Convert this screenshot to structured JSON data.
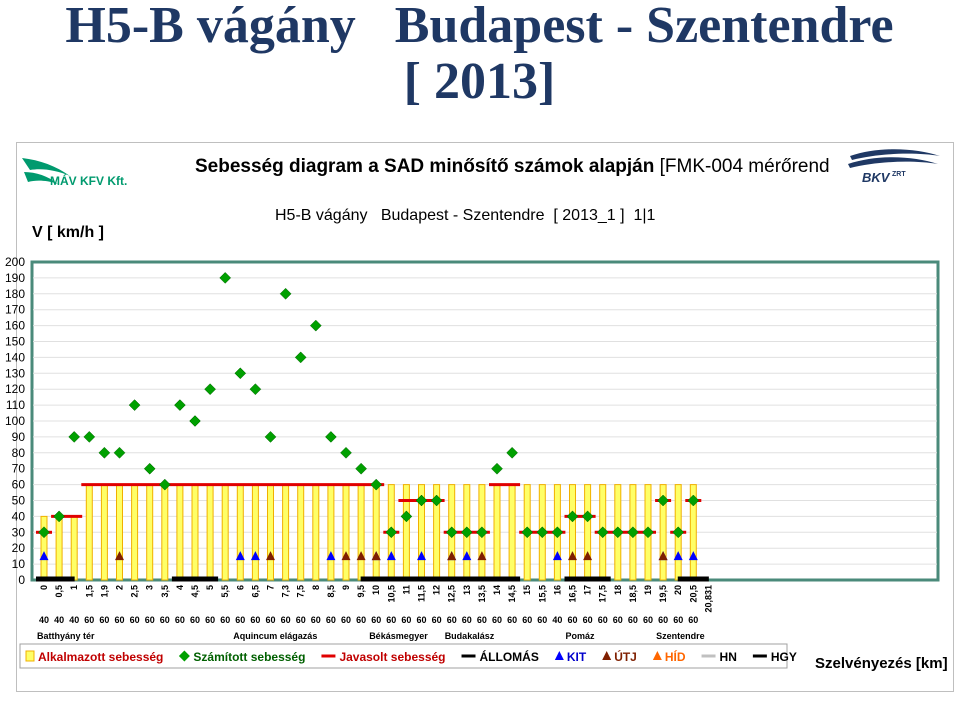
{
  "page": {
    "title_line1": "H5-B vágány   Budapest - Szentendre",
    "title_line2": "[ 2013]",
    "logo_left_text": "MÁV KFV Kft.",
    "logo_right_text": "BKV",
    "logo_right_badge": "ZRT"
  },
  "chart_data": {
    "type": "bar",
    "header": "Sebesség diagram a SAD minősítő számok alapján",
    "header_suffix": " [FMK-004 mérőrend",
    "title": "H5-B vágány   Budapest - Szentendre  [ 2013_1 ]  1|1",
    "ylabel": "V [ km/h ]",
    "xlabel": "Szelvényezés [km]",
    "ylim": [
      0,
      200
    ],
    "yticks": [
      0,
      10,
      20,
      30,
      40,
      50,
      60,
      70,
      80,
      90,
      100,
      110,
      120,
      130,
      140,
      150,
      160,
      170,
      180,
      190,
      200
    ],
    "grid": "y-major",
    "x_ticks": [
      "0",
      "0,5",
      "1",
      "1,5",
      "1,9",
      "2",
      "2,5",
      "3",
      "3,5",
      "4",
      "4,5",
      "5",
      "5,5",
      "6",
      "6,5",
      "7",
      "7,3",
      "7,5",
      "8",
      "8,5",
      "9",
      "9,5",
      "10",
      "10,5",
      "11",
      "11,5",
      "12",
      "12,5",
      "13",
      "13,5",
      "14",
      "14,5",
      "15",
      "15,5",
      "16",
      "16,5",
      "17",
      "17,5",
      "18",
      "18,5",
      "19",
      "19,5",
      "20",
      "20,5",
      "20,831"
    ],
    "series": [
      {
        "name": "Alkalmazott sebesség",
        "kind": "bar",
        "color": "#ffff66",
        "edge": "#f0b000",
        "values": [
          40,
          40,
          40,
          60,
          60,
          60,
          60,
          60,
          60,
          60,
          60,
          60,
          60,
          60,
          60,
          60,
          60,
          60,
          60,
          60,
          60,
          60,
          60,
          60,
          60,
          60,
          60,
          60,
          60,
          60,
          60,
          60,
          60,
          60,
          60,
          60,
          60,
          60,
          60,
          60,
          60,
          60,
          60,
          60
        ]
      },
      {
        "name": "Számított sebesség",
        "kind": "marker",
        "marker": "diamond",
        "color": "#00a000",
        "values": [
          30,
          40,
          90,
          90,
          80,
          80,
          110,
          70,
          60,
          110,
          100,
          120,
          190,
          130,
          120,
          90,
          180,
          140,
          160,
          90,
          80,
          70,
          60,
          30,
          40,
          50,
          50,
          30,
          30,
          30,
          70,
          80,
          30,
          30,
          30,
          40,
          40,
          30,
          30,
          30,
          30,
          50,
          30,
          50
        ]
      },
      {
        "name": "Javasolt sebesség",
        "kind": "step",
        "color": "#e00000",
        "values": [
          30,
          40,
          40,
          60,
          60,
          60,
          60,
          60,
          60,
          60,
          60,
          60,
          60,
          60,
          60,
          60,
          60,
          60,
          60,
          60,
          60,
          60,
          60,
          30,
          50,
          50,
          50,
          30,
          30,
          30,
          60,
          60,
          30,
          30,
          30,
          40,
          40,
          30,
          30,
          30,
          30,
          50,
          30,
          50
        ]
      },
      {
        "name": "ÁLLOMÁS",
        "kind": "segment",
        "color": "#000000",
        "ranges": [
          [
            0,
            1.5
          ],
          [
            9,
            11
          ],
          [
            21.5,
            31
          ],
          [
            35,
            37
          ],
          [
            42.5,
            43.5
          ]
        ]
      },
      {
        "name": "KIT",
        "kind": "marker",
        "marker": "triangle",
        "color": "#0000ff",
        "y": 15,
        "positions": [
          0,
          13,
          14,
          19,
          22,
          23,
          25,
          27,
          28,
          34,
          41,
          42,
          43
        ]
      },
      {
        "name": "ÚTJ",
        "kind": "marker",
        "marker": "triangle",
        "color": "#7f1f00",
        "y": 15,
        "positions": [
          5,
          15,
          20,
          21,
          22,
          27,
          29,
          35,
          36,
          41
        ]
      },
      {
        "name": "HÍD",
        "kind": "marker",
        "marker": "triangle",
        "color": "#ff6600",
        "y": 15,
        "positions": []
      },
      {
        "name": "HN",
        "kind": "segment",
        "color": "#c0c0c0",
        "ranges": []
      },
      {
        "name": "HGY",
        "kind": "segment",
        "color": "#000000",
        "ranges": []
      }
    ],
    "permitted_speed_row": [
      "40",
      "40",
      "40",
      "60",
      "60",
      "60",
      "60",
      "60",
      "60",
      "60",
      "60",
      "60",
      "60",
      "60",
      "60",
      "60",
      "60",
      "60",
      "60",
      "60",
      "60",
      "60",
      "60",
      "60",
      "60",
      "60",
      "60",
      "60",
      "60",
      "60",
      "60",
      "60",
      "60",
      "60",
      "40",
      "60",
      "60",
      "60",
      "60",
      "60",
      "60",
      "60",
      "60",
      "60"
    ],
    "stations": [
      {
        "name": "Batthyány tér",
        "at": 0
      },
      {
        "name": "Aquincum elágazás",
        "at": 13
      },
      {
        "name": "Békásmegyer",
        "at": 22
      },
      {
        "name": "Budakalász",
        "at": 27
      },
      {
        "name": "Pomáz",
        "at": 35
      },
      {
        "name": "Szentendre",
        "at": 41
      }
    ],
    "legend_position": "bottom"
  }
}
